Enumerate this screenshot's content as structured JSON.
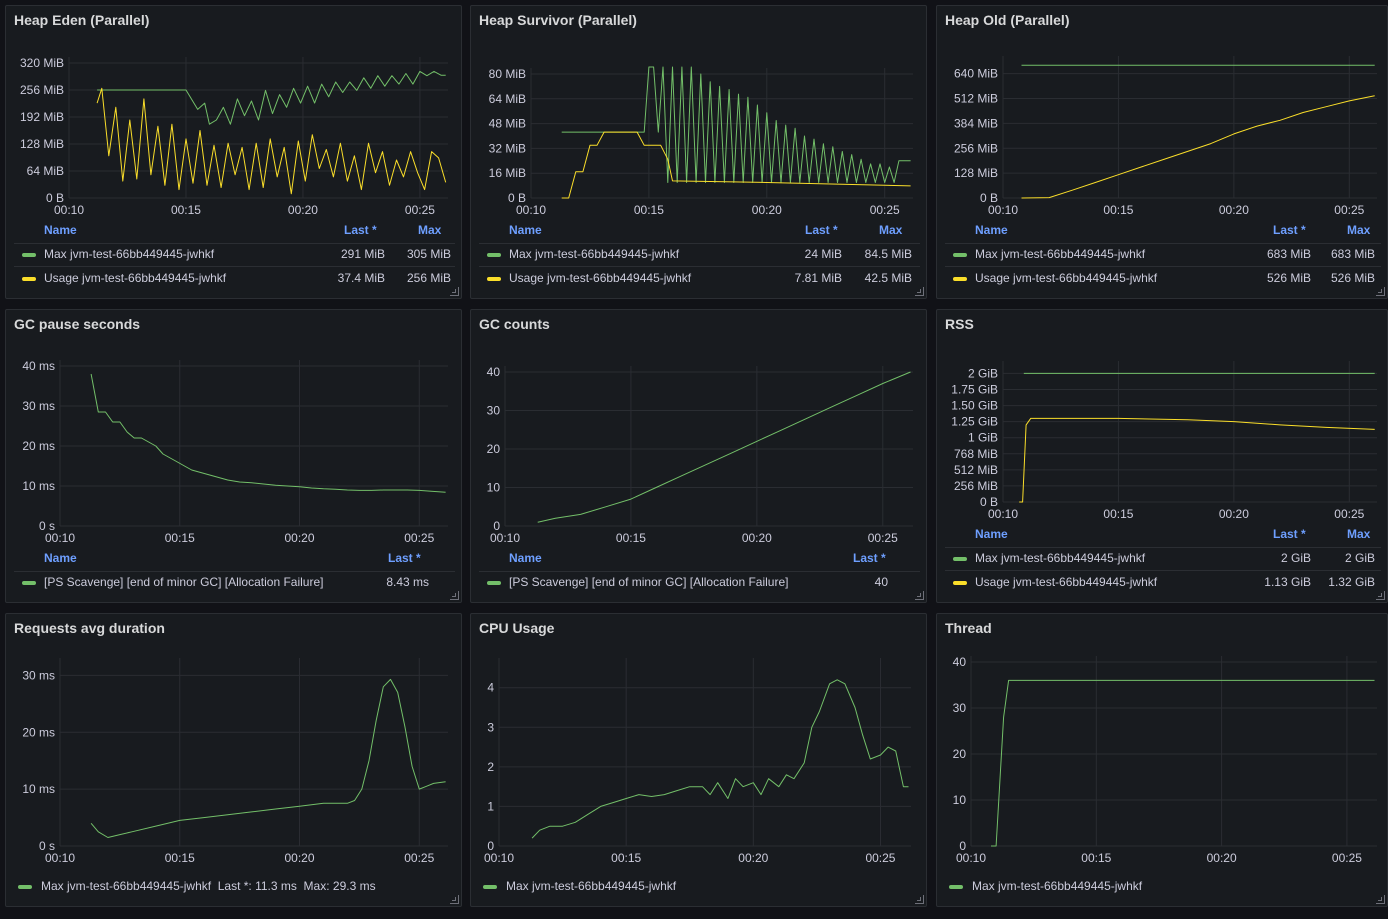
{
  "colors": {
    "green": "#73bf69",
    "yellow": "#fade2a"
  },
  "xticks": [
    "00:10",
    "00:15",
    "00:20",
    "00:25"
  ],
  "panels": {
    "heap_eden": {
      "title": "Heap Eden (Parallel)",
      "legend_headers": {
        "name": "Name",
        "last": "Last *",
        "max": "Max"
      },
      "legend": [
        {
          "name": "Max jvm-test-66bb449445-jwhkf",
          "last": "291 MiB",
          "max": "305 MiB",
          "color": "#73bf69"
        },
        {
          "name": "Usage jvm-test-66bb449445-jwhkf",
          "last": "37.4 MiB",
          "max": "256 MiB",
          "color": "#fade2a"
        }
      ]
    },
    "heap_survivor": {
      "title": "Heap Survivor (Parallel)",
      "legend_headers": {
        "name": "Name",
        "last": "Last *",
        "max": "Max"
      },
      "legend": [
        {
          "name": "Max jvm-test-66bb449445-jwhkf",
          "last": "24 MiB",
          "max": "84.5 MiB",
          "color": "#73bf69"
        },
        {
          "name": "Usage jvm-test-66bb449445-jwhkf",
          "last": "7.81 MiB",
          "max": "42.5 MiB",
          "color": "#fade2a"
        }
      ]
    },
    "heap_old": {
      "title": "Heap Old (Parallel)",
      "legend_headers": {
        "name": "Name",
        "last": "Last *",
        "max": "Max"
      },
      "legend": [
        {
          "name": "Max jvm-test-66bb449445-jwhkf",
          "last": "683 MiB",
          "max": "683 MiB",
          "color": "#73bf69"
        },
        {
          "name": "Usage jvm-test-66bb449445-jwhkf",
          "last": "526 MiB",
          "max": "526 MiB",
          "color": "#fade2a"
        }
      ]
    },
    "gc_pause": {
      "title": "GC pause seconds",
      "legend_headers": {
        "name": "Name",
        "last": "Last *"
      },
      "legend": [
        {
          "name": "[PS Scavenge] [end of minor GC] [Allocation Failure]",
          "last": "8.43 ms",
          "color": "#73bf69"
        }
      ]
    },
    "gc_counts": {
      "title": "GC counts",
      "legend_headers": {
        "name": "Name",
        "last": "Last *"
      },
      "legend": [
        {
          "name": "[PS Scavenge] [end of minor GC] [Allocation Failure]",
          "last": "40",
          "color": "#73bf69"
        }
      ]
    },
    "rss": {
      "title": "RSS",
      "legend_headers": {
        "name": "Name",
        "last": "Last *",
        "max": "Max"
      },
      "legend": [
        {
          "name": "Max jvm-test-66bb449445-jwhkf",
          "last": "2 GiB",
          "max": "2 GiB",
          "color": "#73bf69"
        },
        {
          "name": "Usage jvm-test-66bb449445-jwhkf",
          "last": "1.13 GiB",
          "max": "1.32 GiB",
          "color": "#fade2a"
        }
      ]
    },
    "requests": {
      "title": "Requests avg duration",
      "legend_inline": "Max jvm-test-66bb449445-jwhkf  Last *: 11.3 ms  Max: 29.3 ms"
    },
    "cpu": {
      "title": "CPU Usage",
      "legend_inline": "Max jvm-test-66bb449445-jwhkf"
    },
    "thread": {
      "title": "Thread",
      "legend_inline": "Max jvm-test-66bb449445-jwhkf"
    }
  },
  "chart_data": [
    {
      "id": "heap_eden",
      "type": "line",
      "title": "Heap Eden (Parallel)",
      "x": "time 00:10–00:26",
      "ylim": [
        0,
        320
      ],
      "yticks": [
        "0 B",
        "64 MiB",
        "128 MiB",
        "192 MiB",
        "256 MiB",
        "320 MiB"
      ],
      "series": [
        {
          "name": "Max jvm-test-66bb449445-jwhkf",
          "color": "#73bf69",
          "t": [
            11.2,
            11.5,
            11.8,
            12,
            13,
            14,
            15,
            15.5,
            15.8,
            16,
            16.3,
            16.6,
            16.9,
            17.2,
            17.5,
            17.8,
            18.1,
            18.4,
            18.7,
            19,
            19.3,
            19.6,
            19.9,
            20.2,
            20.5,
            20.8,
            21.1,
            21.4,
            21.7,
            22,
            22.3,
            22.6,
            22.9,
            23.2,
            23.5,
            23.8,
            24.1,
            24.4,
            24.7,
            25,
            25.3,
            25.6,
            25.9,
            26.1
          ],
          "v": [
            256,
            256,
            256,
            256,
            256,
            256,
            256,
            210,
            225,
            175,
            185,
            215,
            175,
            235,
            195,
            230,
            185,
            255,
            200,
            245,
            215,
            260,
            225,
            265,
            225,
            270,
            240,
            275,
            250,
            275,
            255,
            285,
            260,
            290,
            265,
            290,
            270,
            295,
            270,
            300,
            290,
            300,
            291,
            291
          ]
        },
        {
          "name": "Usage jvm-test-66bb449445-jwhkf",
          "color": "#fade2a",
          "t": [
            11.2,
            11.4,
            11.7,
            12,
            12.3,
            12.6,
            12.9,
            13.2,
            13.5,
            13.8,
            14.1,
            14.4,
            14.7,
            15,
            15.3,
            15.6,
            15.9,
            16.2,
            16.5,
            16.8,
            17.1,
            17.4,
            17.7,
            18,
            18.3,
            18.6,
            18.9,
            19.2,
            19.5,
            19.8,
            20.1,
            20.4,
            20.7,
            21,
            21.3,
            21.6,
            21.9,
            22.2,
            22.5,
            22.8,
            23.1,
            23.4,
            23.7,
            24,
            24.3,
            24.6,
            24.9,
            25.2,
            25.5,
            25.8,
            26.1
          ],
          "v": [
            225,
            260,
            100,
            215,
            40,
            185,
            45,
            235,
            55,
            170,
            30,
            175,
            20,
            140,
            35,
            160,
            30,
            125,
            25,
            130,
            55,
            120,
            20,
            130,
            25,
            140,
            50,
            120,
            10,
            135,
            40,
            150,
            70,
            115,
            50,
            130,
            40,
            100,
            20,
            130,
            60,
            110,
            30,
            90,
            50,
            110,
            60,
            20,
            110,
            95,
            37
          ]
        }
      ]
    },
    {
      "id": "heap_survivor",
      "type": "line",
      "title": "Heap Survivor (Parallel)",
      "ylim": [
        0,
        80
      ],
      "yticks": [
        "0 B",
        "16 MiB",
        "32 MiB",
        "48 MiB",
        "64 MiB",
        "80 MiB"
      ],
      "series": [
        {
          "name": "Max",
          "color": "#73bf69",
          "t": [
            11.3,
            12,
            13,
            14,
            14.5,
            14.8,
            15,
            15.2,
            15.4,
            15.6,
            15.8,
            16,
            16.2,
            16.4,
            16.6,
            16.8,
            17,
            17.2,
            17.4,
            17.6,
            17.8,
            18,
            18.2,
            18.4,
            18.6,
            18.8,
            19,
            19.2,
            19.4,
            19.6,
            19.8,
            20,
            20.2,
            20.4,
            20.6,
            20.8,
            21,
            21.2,
            21.4,
            21.6,
            21.8,
            22,
            22.2,
            22.4,
            22.6,
            22.8,
            23,
            23.2,
            23.4,
            23.6,
            23.8,
            24,
            24.2,
            24.4,
            24.6,
            24.8,
            25,
            25.2,
            25.4,
            25.6,
            25.8,
            26.1
          ],
          "v": [
            42.5,
            42.5,
            42.5,
            42.5,
            42.5,
            42.5,
            84.5,
            84.5,
            42.5,
            84.5,
            10,
            84.5,
            10,
            84.5,
            10,
            84.5,
            10,
            80,
            10,
            75,
            10,
            72,
            10,
            70,
            10,
            67,
            10,
            65,
            10,
            60,
            10,
            55,
            10,
            50,
            10,
            47,
            10,
            45,
            10,
            40,
            10,
            38,
            10,
            35,
            10,
            33,
            10,
            30,
            10,
            28,
            10,
            25,
            10,
            22,
            10,
            22,
            10,
            20,
            10,
            24,
            24,
            24
          ]
        },
        {
          "name": "Usage",
          "color": "#fade2a",
          "t": [
            11.3,
            11.6,
            11.9,
            12.2,
            12.5,
            12.8,
            13.1,
            14.5,
            14.8,
            15.1,
            15.5,
            15.8,
            16,
            20,
            26.1
          ],
          "v": [
            0,
            0,
            17,
            17,
            34,
            34,
            42.5,
            42.5,
            34,
            34,
            34,
            25,
            11,
            10,
            7.81
          ]
        }
      ]
    },
    {
      "id": "heap_old",
      "type": "line",
      "title": "Heap Old (Parallel)",
      "ylim": [
        0,
        700
      ],
      "yticks": [
        "0 B",
        "128 MiB",
        "256 MiB",
        "384 MiB",
        "512 MiB",
        "640 MiB"
      ],
      "series": [
        {
          "name": "Max",
          "color": "#73bf69",
          "t": [
            10.8,
            26.1
          ],
          "v": [
            683,
            683
          ]
        },
        {
          "name": "Usage",
          "color": "#fade2a",
          "t": [
            10.8,
            12,
            13,
            14,
            15,
            16,
            17,
            18,
            19,
            20,
            21,
            22,
            23,
            24,
            25,
            26.1
          ],
          "v": [
            0,
            2,
            40,
            80,
            120,
            160,
            200,
            240,
            280,
            330,
            370,
            400,
            440,
            470,
            500,
            526
          ]
        }
      ]
    },
    {
      "id": "gc_pause",
      "type": "line",
      "title": "GC pause seconds",
      "ylim": [
        0,
        40
      ],
      "yticks": [
        "0 s",
        "10 ms",
        "20 ms",
        "30 ms",
        "40 ms"
      ],
      "series": [
        {
          "name": "[PS Scavenge] [end of minor GC] [Allocation Failure]",
          "color": "#73bf69",
          "t": [
            11.3,
            11.6,
            11.9,
            12.2,
            12.5,
            12.8,
            13.1,
            13.4,
            13.7,
            14,
            14.3,
            14.6,
            14.9,
            15.2,
            15.5,
            15.8,
            16.1,
            16.4,
            16.7,
            17,
            17.5,
            18,
            18.5,
            19,
            19.5,
            20,
            20.5,
            21,
            21.5,
            22,
            22.5,
            23,
            23.5,
            24,
            24.5,
            25,
            25.5,
            26.1
          ],
          "v": [
            38,
            28.5,
            28.5,
            26,
            26,
            23.5,
            22,
            22,
            21,
            20,
            18,
            17,
            16,
            15,
            14,
            13.5,
            13,
            12.5,
            12,
            11.5,
            11,
            10.8,
            10.5,
            10.2,
            10,
            9.8,
            9.5,
            9.3,
            9.2,
            9,
            8.9,
            8.9,
            9,
            9,
            9,
            8.9,
            8.7,
            8.43
          ]
        }
      ]
    },
    {
      "id": "gc_counts",
      "type": "line",
      "title": "GC counts",
      "ylim": [
        0,
        40
      ],
      "yticks": [
        "0",
        "10",
        "20",
        "30",
        "40"
      ],
      "series": [
        {
          "name": "[PS Scavenge] [end of minor GC] [Allocation Failure]",
          "color": "#73bf69",
          "t": [
            11.3,
            12,
            13,
            14,
            15,
            16,
            17,
            18,
            19,
            20,
            21,
            22,
            23,
            24,
            25,
            26.1
          ],
          "v": [
            1,
            2,
            3,
            5,
            7,
            10,
            13,
            16,
            19,
            22,
            25,
            28,
            31,
            34,
            37,
            40
          ]
        }
      ]
    },
    {
      "id": "rss",
      "type": "line",
      "title": "RSS",
      "ylim": [
        0,
        2.1
      ],
      "yticks": [
        "0 B",
        "256 MiB",
        "512 MiB",
        "768 MiB",
        "1 GiB",
        "1.25 GiB",
        "1.50 GiB",
        "1.75 GiB",
        "2 GiB"
      ],
      "series": [
        {
          "name": "Max",
          "color": "#73bf69",
          "t": [
            10.9,
            26.1
          ],
          "v": [
            2,
            2
          ]
        },
        {
          "name": "Usage",
          "color": "#fade2a",
          "t": [
            10.7,
            10.85,
            11,
            11.2,
            15,
            18,
            20,
            22,
            24,
            26.1
          ],
          "v": [
            0,
            0,
            1.2,
            1.3,
            1.3,
            1.28,
            1.25,
            1.2,
            1.16,
            1.13
          ]
        }
      ]
    },
    {
      "id": "requests",
      "type": "line",
      "title": "Requests avg duration",
      "ylim": [
        0,
        32
      ],
      "yticks": [
        "0 s",
        "10 ms",
        "20 ms",
        "30 ms"
      ],
      "series": [
        {
          "name": "Max jvm-test-66bb449445-jwhkf",
          "color": "#73bf69",
          "t": [
            11.3,
            11.6,
            12,
            12.5,
            13,
            14,
            15,
            16,
            17,
            18,
            19,
            20,
            21,
            22,
            22.3,
            22.6,
            22.9,
            23.2,
            23.5,
            23.8,
            24.1,
            24.4,
            24.7,
            25,
            25.3,
            25.6,
            26.1
          ],
          "v": [
            4,
            2.5,
            1.5,
            2,
            2.5,
            3.5,
            4.5,
            5,
            5.5,
            6,
            6.5,
            7,
            7.5,
            7.5,
            8,
            10,
            15,
            22,
            28,
            29.3,
            27,
            21,
            14,
            10,
            10.5,
            11,
            11.3
          ]
        }
      ]
    },
    {
      "id": "cpu",
      "type": "line",
      "title": "CPU Usage",
      "ylim": [
        0,
        4.6
      ],
      "yticks": [
        "0",
        "1",
        "2",
        "3",
        "4"
      ],
      "series": [
        {
          "name": "Max jvm-test-66bb449445-jwhkf",
          "color": "#73bf69",
          "t": [
            11.3,
            11.6,
            12,
            12.5,
            13,
            13.5,
            14,
            14.5,
            15,
            15.5,
            16,
            16.5,
            17,
            17.5,
            18,
            18.3,
            18.6,
            19,
            19.3,
            19.6,
            20,
            20.3,
            20.6,
            21,
            21.3,
            21.6,
            22,
            22.3,
            22.6,
            23,
            23.3,
            23.6,
            24,
            24.3,
            24.6,
            25,
            25.3,
            25.6,
            25.9,
            26.1
          ],
          "v": [
            0.2,
            0.4,
            0.5,
            0.5,
            0.6,
            0.8,
            1,
            1.1,
            1.2,
            1.3,
            1.25,
            1.3,
            1.4,
            1.5,
            1.5,
            1.3,
            1.6,
            1.2,
            1.7,
            1.5,
            1.6,
            1.3,
            1.7,
            1.5,
            1.8,
            1.7,
            2.1,
            3,
            3.4,
            4.1,
            4.2,
            4.1,
            3.5,
            2.8,
            2.2,
            2.3,
            2.5,
            2.4,
            1.5,
            1.5
          ]
        }
      ]
    },
    {
      "id": "thread",
      "type": "line",
      "title": "Thread",
      "ylim": [
        0,
        40
      ],
      "yticks": [
        "0",
        "10",
        "20",
        "30",
        "40"
      ],
      "series": [
        {
          "name": "Max jvm-test-66bb449445-jwhkf",
          "color": "#73bf69",
          "t": [
            10.8,
            11,
            11.3,
            11.5,
            11.7,
            12,
            26.1
          ],
          "v": [
            0,
            0,
            28,
            36,
            36,
            36,
            36
          ]
        }
      ]
    }
  ]
}
